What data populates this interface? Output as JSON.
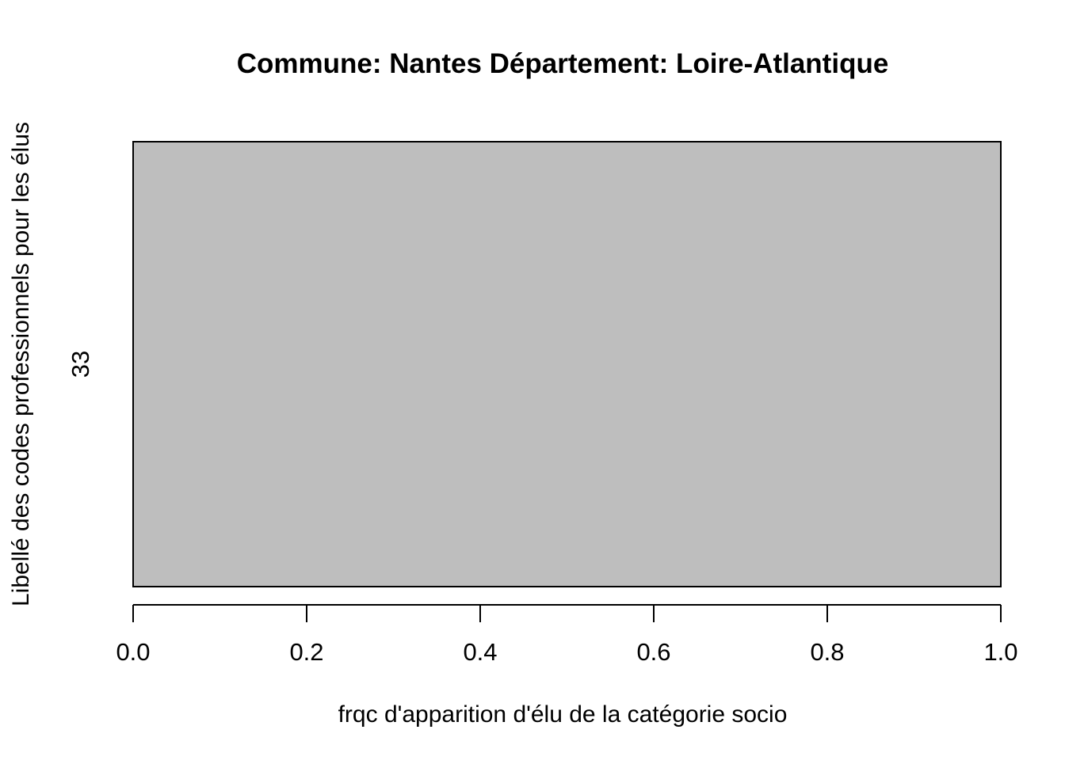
{
  "chart_data": {
    "type": "bar",
    "orientation": "horizontal",
    "title": "Commune:  Nantes Département: Loire-Atlantique",
    "xlabel": "frqc d'apparition d'élu de la catégorie socio",
    "ylabel": "Libellé des codes professionnels pour les élus",
    "categories": [
      "33"
    ],
    "values": [
      1.0
    ],
    "xlim": [
      0,
      1
    ],
    "xticks": [
      0,
      0.2,
      0.4,
      0.6,
      0.8,
      1
    ],
    "xtick_labels": [
      "0.0",
      "0.2",
      "0.4",
      "0.6",
      "0.8",
      "1.0"
    ],
    "bar_color": "#bebebe",
    "border_color": "#000000",
    "grid": false
  }
}
